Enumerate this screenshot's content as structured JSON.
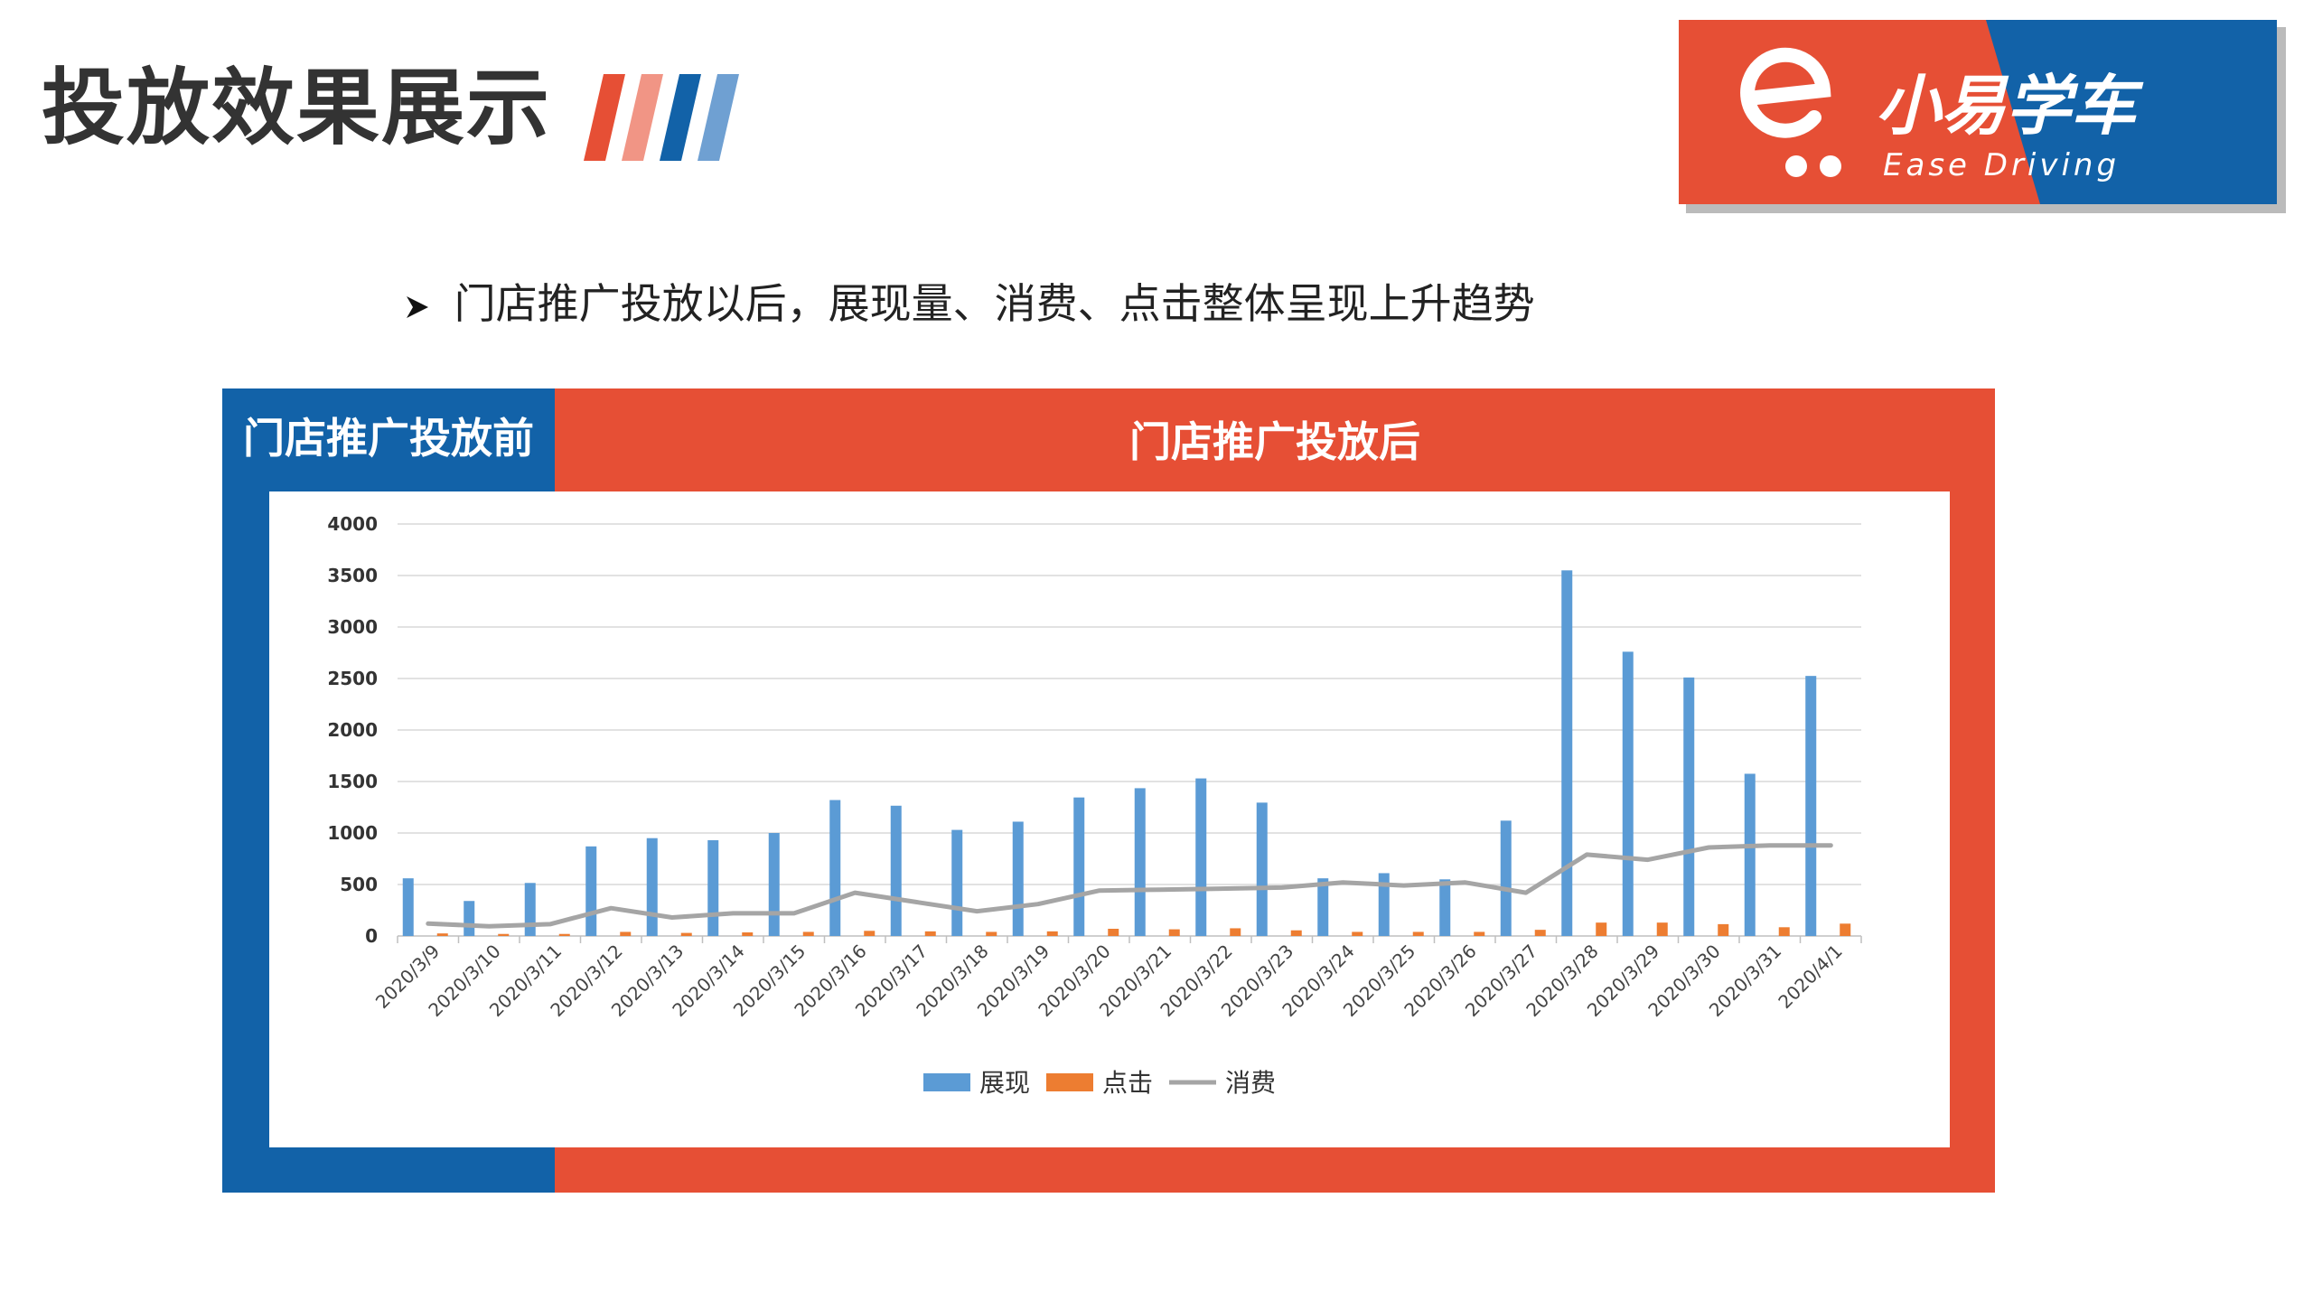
{
  "page": {
    "title": "投放效果展示",
    "bullet_icon": "arrowhead-bullet-icon",
    "bullet_text": "门店推广投放以后，展现量、消费、点击整体呈现上升趋势",
    "label_before": "门店推广投放前",
    "label_after": "门店推广投放后"
  },
  "logo": {
    "brand_cn": "小易学车",
    "brand_en": "Ease Driving",
    "icon": "e-cart-logo-icon"
  },
  "colors": {
    "accent_red": "#e64f35",
    "accent_blue": "#1262a8",
    "series_impressions": "#5b9bd5",
    "series_clicks": "#ed7d31",
    "series_spend": "#a5a5a5",
    "stripe_colors": [
      "#e64f35",
      "#f19585",
      "#1262a8",
      "#6fa0d2"
    ]
  },
  "chart_data": {
    "type": "bar",
    "categories": [
      "2020/3/9",
      "2020/3/10",
      "2020/3/11",
      "2020/3/12",
      "2020/3/13",
      "2020/3/14",
      "2020/3/15",
      "2020/3/16",
      "2020/3/17",
      "2020/3/18",
      "2020/3/19",
      "2020/3/20",
      "2020/3/21",
      "2020/3/22",
      "2020/3/23",
      "2020/3/24",
      "2020/3/25",
      "2020/3/26",
      "2020/3/27",
      "2020/3/28",
      "2020/3/29",
      "2020/3/30",
      "2020/3/31",
      "2020/4/1"
    ],
    "series": [
      {
        "name": "展现",
        "type": "bar",
        "values": [
          560,
          340,
          515,
          870,
          950,
          930,
          1000,
          1320,
          1265,
          1030,
          1110,
          1345,
          1435,
          1530,
          1295,
          560,
          610,
          550,
          1120,
          3550,
          2760,
          2510,
          1575,
          2525
        ]
      },
      {
        "name": "点击",
        "type": "bar",
        "values": [
          25,
          20,
          20,
          40,
          30,
          35,
          40,
          50,
          45,
          40,
          45,
          70,
          65,
          75,
          55,
          40,
          40,
          40,
          60,
          130,
          130,
          115,
          85,
          120
        ]
      },
      {
        "name": "消费",
        "type": "line",
        "values": [
          120,
          95,
          115,
          270,
          180,
          220,
          220,
          420,
          330,
          240,
          310,
          440,
          450,
          460,
          470,
          520,
          490,
          520,
          420,
          790,
          740,
          860,
          880,
          880
        ]
      }
    ],
    "ylim": [
      0,
      4000
    ],
    "yticks": [
      0,
      500,
      1000,
      1500,
      2000,
      2500,
      3000,
      3500,
      4000
    ],
    "grid": true,
    "legend_position": "bottom"
  }
}
